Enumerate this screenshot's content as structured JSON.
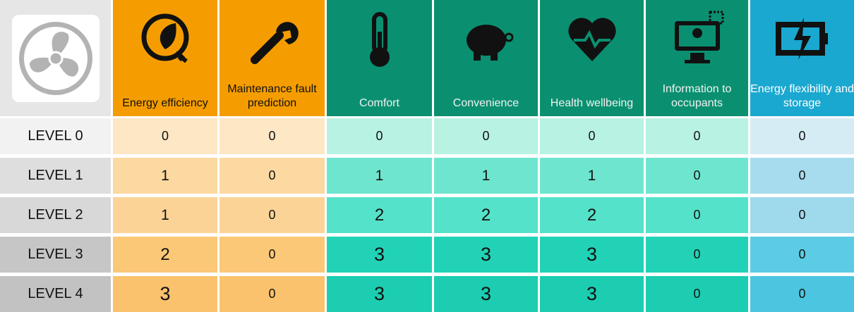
{
  "header": {
    "columns": [
      "Energy efficiency",
      "Maintenance fault prediction",
      "Comfort",
      "Convenience",
      "Health wellbeing",
      "Information to occupants",
      "Energy flexibility and storage"
    ]
  },
  "table": {
    "rows": [
      {
        "label": "LEVEL 0",
        "values": [
          0,
          0,
          0,
          0,
          0,
          0,
          0
        ]
      },
      {
        "label": "LEVEL 1",
        "values": [
          1,
          0,
          1,
          1,
          1,
          0,
          0
        ]
      },
      {
        "label": "LEVEL 2",
        "values": [
          1,
          0,
          2,
          2,
          2,
          0,
          0
        ]
      },
      {
        "label": "LEVEL 3",
        "values": [
          2,
          0,
          3,
          3,
          3,
          0,
          0
        ]
      },
      {
        "label": "LEVEL 4",
        "values": [
          3,
          0,
          3,
          3,
          3,
          0,
          0
        ]
      }
    ]
  }
}
